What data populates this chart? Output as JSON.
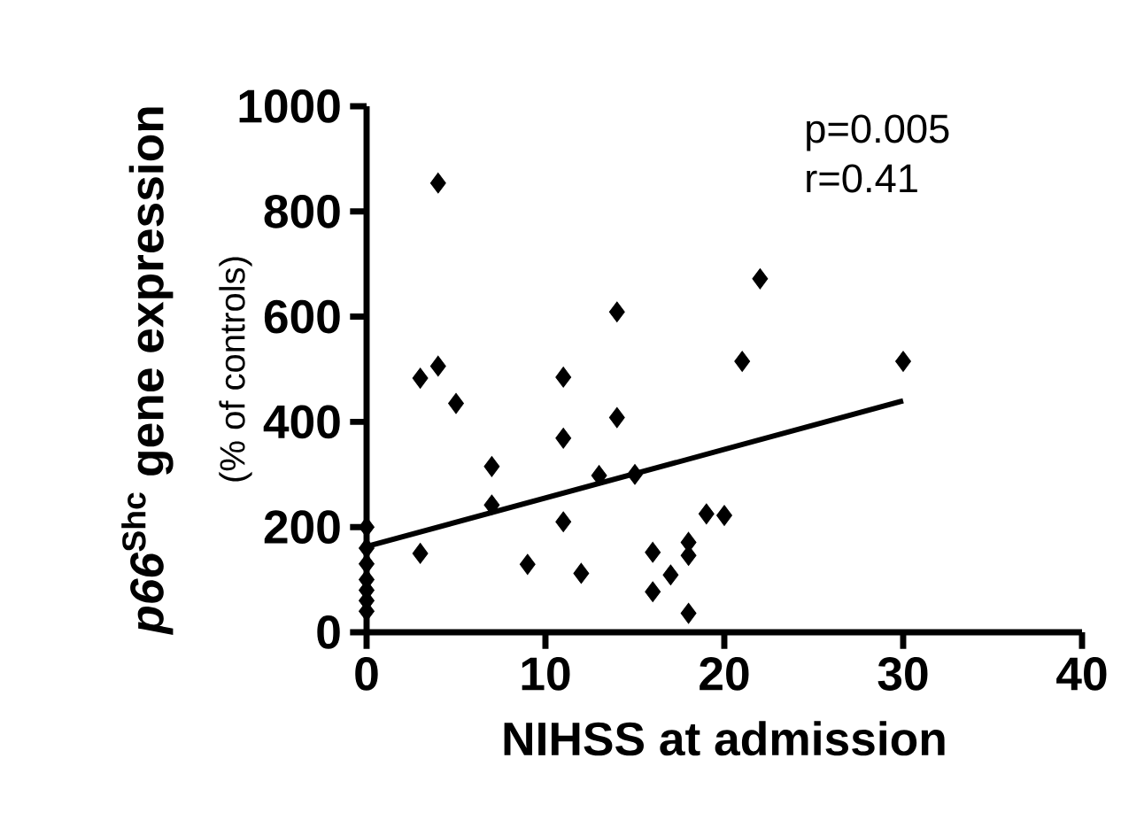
{
  "chart_data": {
    "type": "scatter",
    "xlabel": "NIHSS at admission",
    "ylabel": "*p66*$^{Shc}$ gene expression",
    "annotations": [
      "(% of controls)",
      "p=0.005",
      "r=0.41"
    ],
    "series": [
      {
        "color": "#000000",
        "marker": "diamond",
        "x": [
          0,
          0,
          0,
          0,
          0,
          0,
          0,
          3,
          3,
          4,
          4,
          5,
          7,
          7,
          9,
          11,
          11,
          11,
          12,
          13,
          14,
          14,
          15,
          16,
          16,
          17,
          18,
          18,
          18,
          19,
          20,
          21,
          22,
          30
        ],
        "values": [
          200,
          160,
          130,
          100,
          80,
          60,
          40,
          150,
          483,
          506,
          854,
          435,
          315,
          242,
          129,
          485,
          369,
          210,
          112,
          298,
          609,
          408,
          300,
          152,
          77,
          109,
          171,
          36,
          146,
          225,
          222,
          515,
          672,
          515
        ]
      },
      {
        "type": "line",
        "color": "#000000",
        "marker": "none",
        "x": [
          0,
          30
        ],
        "values": [
          163,
          440
        ]
      }
    ],
    "xlim": [
      0,
      40
    ],
    "ylim": [
      0,
      1000
    ],
    "xticks": [
      0,
      10,
      20,
      30,
      40
    ],
    "yticks": [
      0,
      200,
      400,
      600,
      800,
      1000
    ]
  }
}
